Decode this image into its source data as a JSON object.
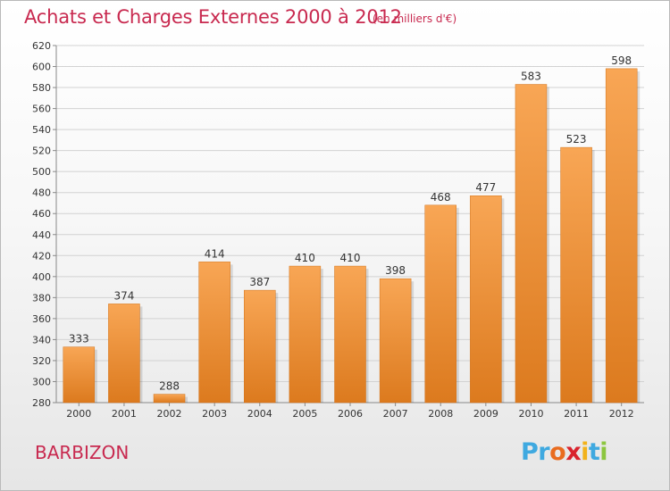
{
  "title": "Achats et Charges Externes 2000 à 2012",
  "subtitle": "(en milliers d'€)",
  "commune": "BARBIZON",
  "brand": {
    "letters": [
      "P",
      "r",
      "o",
      "x",
      "i",
      "t",
      "i"
    ],
    "colors": [
      "#3fa9e0",
      "#3fa9e0",
      "#e96c1f",
      "#d9232d",
      "#f2b21b",
      "#3fa9e0",
      "#8cc63f"
    ]
  },
  "colors": {
    "bar_top": "#f8a655",
    "bar_bottom": "#dc7a1e",
    "title": "#c8294f",
    "grid": "#d2d2d2",
    "axis_text": "#333333"
  },
  "chart_data": {
    "type": "bar",
    "categories": [
      "2000",
      "2001",
      "2002",
      "2003",
      "2004",
      "2005",
      "2006",
      "2007",
      "2008",
      "2009",
      "2010",
      "2011",
      "2012"
    ],
    "values": [
      333,
      374,
      288,
      414,
      387,
      410,
      410,
      398,
      468,
      477,
      583,
      523,
      598
    ],
    "title": "Achats et Charges Externes 2000 à 2012",
    "subtitle": "(en milliers d'€)",
    "ylim": [
      280,
      620
    ],
    "yticks": [
      280,
      300,
      320,
      340,
      360,
      380,
      400,
      420,
      440,
      460,
      480,
      500,
      520,
      540,
      560,
      580,
      600,
      620
    ],
    "grid": true,
    "data_labels": true
  }
}
